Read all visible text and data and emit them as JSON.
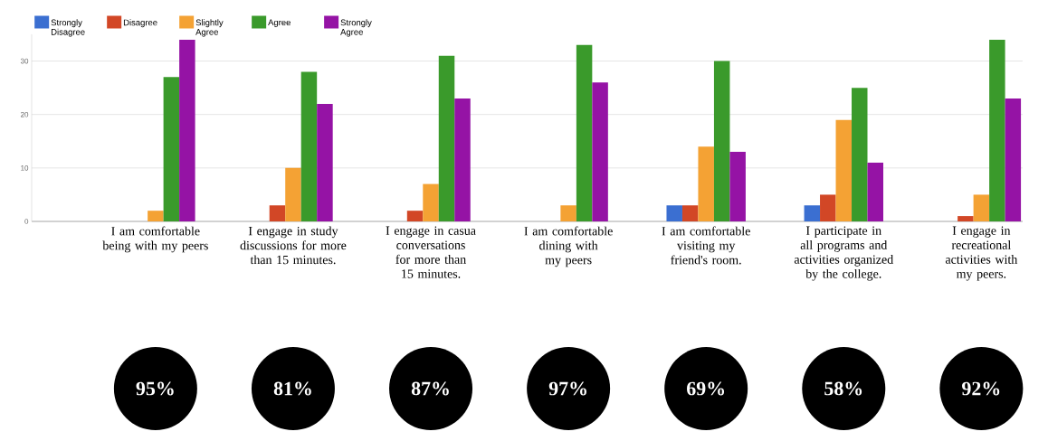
{
  "chart_data": {
    "type": "bar",
    "categories": [
      "I am comfortable being with my peers",
      "I engage in study discussions for more than 15 minutes.",
      "I engage in casua conversations for more than 15 minutes.",
      "I am comfortable dining with my peers",
      "I am comfortable visiting my friend's room.",
      "I participate in all programs and activities organized by the college.",
      "I engage in recreational activities with my peers."
    ],
    "series": [
      {
        "name": "Strongly Disagree",
        "color": "#3b6fd1",
        "values": [
          0,
          0,
          0,
          0,
          3,
          3,
          0
        ]
      },
      {
        "name": "Disagree",
        "color": "#d24726",
        "values": [
          0,
          3,
          2,
          0,
          3,
          5,
          1
        ]
      },
      {
        "name": "Slightly Agree",
        "color": "#f4a234",
        "values": [
          2,
          10,
          7,
          3,
          14,
          19,
          5
        ]
      },
      {
        "name": "Agree",
        "color": "#3a9a2b",
        "values": [
          27,
          28,
          31,
          33,
          30,
          25,
          34
        ]
      },
      {
        "name": "Strongly Agree",
        "color": "#9513a5",
        "values": [
          34,
          22,
          23,
          26,
          13,
          11,
          23
        ]
      }
    ],
    "ylim": [
      0,
      35
    ],
    "yticks": [
      0,
      10,
      20,
      30
    ],
    "grid": "y",
    "legend": "top left",
    "annotations": [
      "95%",
      "81%",
      "87%",
      "97%",
      "69%",
      "58%",
      "92%"
    ]
  }
}
